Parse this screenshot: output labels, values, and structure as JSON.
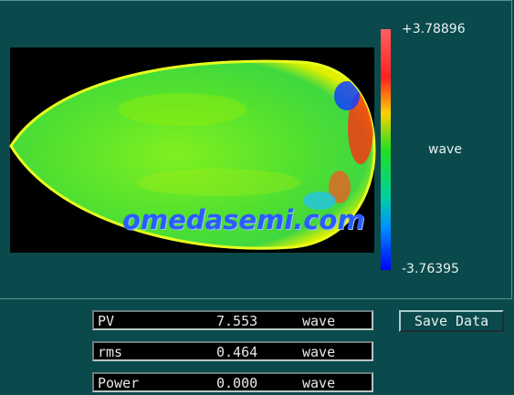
{
  "colorbar": {
    "max_label": "+3.78896",
    "unit": "wave",
    "min_label": "-3.76395"
  },
  "watermark": "omedasemi.com",
  "readouts": [
    {
      "label": "PV",
      "value": "7.553",
      "unit": "wave"
    },
    {
      "label": "rms",
      "value": "0.464",
      "unit": "wave"
    },
    {
      "label": "Power",
      "value": "0.000",
      "unit": "wave"
    }
  ],
  "button": "Save Data"
}
